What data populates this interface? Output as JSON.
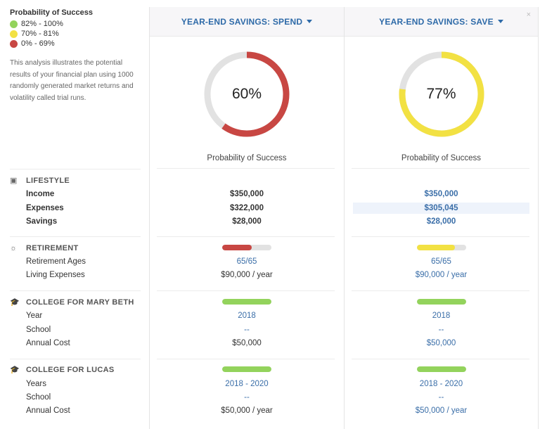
{
  "legend": {
    "title": "Probability of Success",
    "items": [
      {
        "label": "82% - 100%",
        "color": "#93d35c"
      },
      {
        "label": "70% - 81%",
        "color": "#f2e143"
      },
      {
        "label": "0% - 69%",
        "color": "#c84743"
      }
    ],
    "description": "This analysis illustrates the potential results of your financial plan using 1000 randomly generated market returns and volatility called trial runs."
  },
  "sections": {
    "lifestyle": {
      "title": "LIFESTYLE",
      "icon": "money-icon",
      "rows": [
        "Income",
        "Expenses",
        "Savings"
      ]
    },
    "retirement": {
      "title": "RETIREMENT",
      "icon": "sun-icon",
      "rows": [
        "Retirement Ages",
        "Living Expenses"
      ]
    },
    "college1": {
      "title": "COLLEGE FOR MARY BETH",
      "icon": "graduation-cap-icon",
      "rows": [
        "Year",
        "School",
        "Annual Cost"
      ]
    },
    "college2": {
      "title": "COLLEGE FOR LUCAS",
      "icon": "graduation-cap-icon",
      "rows": [
        "Years",
        "School",
        "Annual Cost"
      ]
    }
  },
  "columns": [
    {
      "title": "YEAR-END SAVINGS: SPEND",
      "probability": 60,
      "probability_label": "60%",
      "color": "#c84743",
      "caption": "Probability of Success",
      "income": "$350,000",
      "expenses": "$322,000",
      "savings": "$28,000",
      "retirement_bar": 60,
      "retirement_ages": "65/65",
      "living_expenses": "$90,000 / year",
      "c1_bar": 100,
      "c1_year": "2018",
      "c1_school": "--",
      "c1_cost": "$50,000",
      "c2_bar": 100,
      "c2_years": "2018 - 2020",
      "c2_school": "--",
      "c2_cost": "$50,000 / year"
    },
    {
      "title": "YEAR-END SAVINGS: SAVE",
      "probability": 77,
      "probability_label": "77%",
      "color": "#f2e143",
      "caption": "Probability of Success",
      "close": "×",
      "income": "$350,000",
      "expenses": "$305,045",
      "savings": "$28,000",
      "retirement_bar": 77,
      "retirement_ages": "65/65",
      "living_expenses": "$90,000 / year",
      "c1_bar": 100,
      "c1_year": "2018",
      "c1_school": "--",
      "c1_cost": "$50,000",
      "c2_bar": 100,
      "c2_years": "2018 - 2020",
      "c2_school": "--",
      "c2_cost": "$50,000 / year"
    }
  ],
  "colors": {
    "green": "#93d35c",
    "track": "#e2e2e2",
    "accent": "#2e6aa8"
  }
}
